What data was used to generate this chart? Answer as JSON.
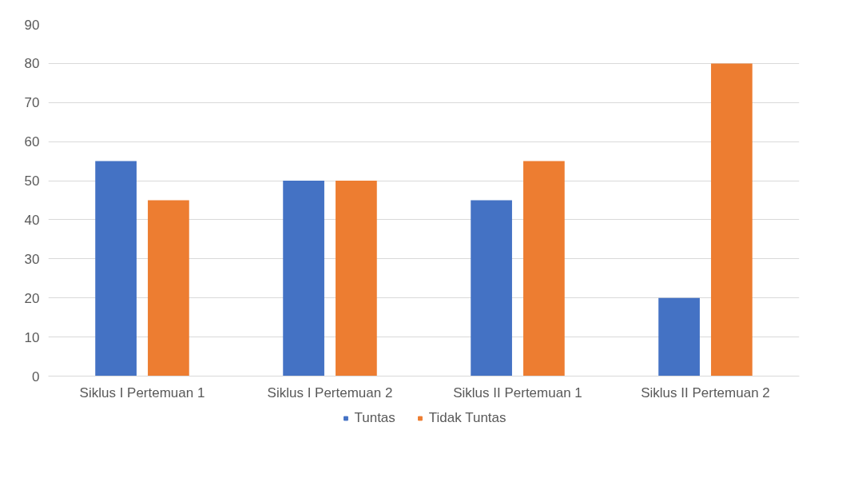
{
  "chart_data": {
    "type": "bar",
    "categories": [
      "Siklus I Pertemuan 1",
      "Siklus I Pertemuan 2",
      "Siklus II Pertemuan 1",
      "Siklus II Pertemuan 2"
    ],
    "series": [
      {
        "name": "Tuntas",
        "color": "#4472c4",
        "values": [
          55,
          50,
          45,
          20
        ]
      },
      {
        "name": "Tidak Tuntas",
        "color": "#ed7d31",
        "values": [
          45,
          50,
          55,
          80
        ]
      }
    ],
    "ylim": [
      0,
      90
    ],
    "yticks": [
      0,
      10,
      20,
      30,
      40,
      50,
      60,
      70,
      80,
      90
    ],
    "grid": "y",
    "legend": "bottom"
  }
}
